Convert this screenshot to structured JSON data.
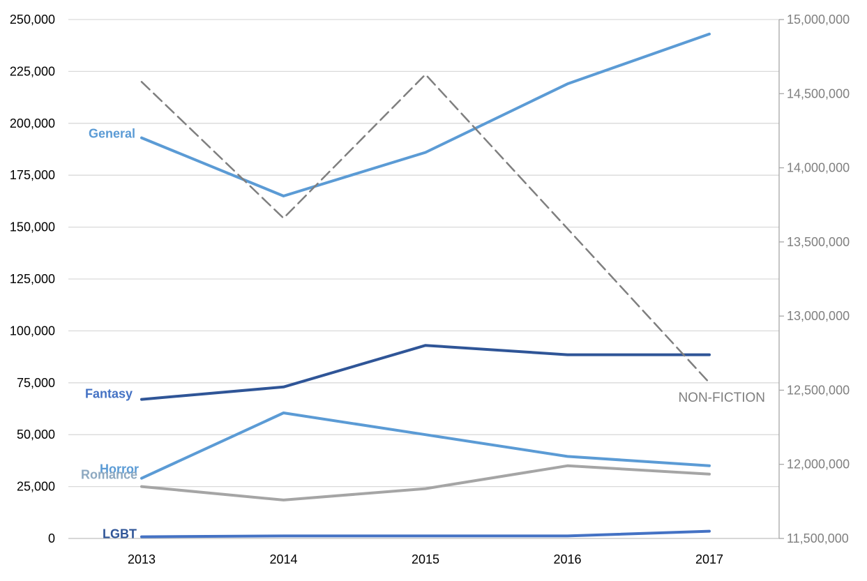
{
  "chart_data": {
    "type": "line",
    "title": "",
    "xlabel": "",
    "ylabel": "",
    "categories": [
      "2013",
      "2014",
      "2015",
      "2016",
      "2017"
    ],
    "left_axis": {
      "ylim": [
        0,
        250000
      ],
      "ticks": [
        "0",
        "25,000",
        "50,000",
        "75,000",
        "100,000",
        "125,000",
        "150,000",
        "175,000",
        "200,000",
        "225,000",
        "250,000"
      ]
    },
    "right_axis": {
      "ylim": [
        11500000,
        15000000
      ],
      "ticks": [
        "11,500,000",
        "12,000,000",
        "12,500,000",
        "13,000,000",
        "13,500,000",
        "14,000,000",
        "14,500,000",
        "15,000,000"
      ]
    },
    "grid": true,
    "series": [
      {
        "name": "General",
        "axis": "left",
        "color": "#5b9bd5",
        "dash": false,
        "values": [
          193000,
          165000,
          186000,
          219000,
          243000
        ]
      },
      {
        "name": "Fantasy",
        "axis": "left",
        "color": "#2f5597",
        "dash": false,
        "values": [
          67000,
          73000,
          93000,
          88500,
          88500
        ]
      },
      {
        "name": "Horror",
        "axis": "left",
        "color": "#5b9bd5",
        "dash": false,
        "values": [
          29000,
          60500,
          50000,
          39500,
          35000
        ]
      },
      {
        "name": "Romance",
        "axis": "left",
        "color": "#a5a5a5",
        "dash": false,
        "values": [
          25000,
          18500,
          24000,
          35000,
          31000
        ]
      },
      {
        "name": "LGBT",
        "axis": "left",
        "color": "#4472c4",
        "dash": false,
        "values": [
          800,
          1200,
          1200,
          1200,
          3500
        ]
      },
      {
        "name": "NON-FICTION",
        "axis": "right",
        "color": "#7f7f7f",
        "dash": true,
        "values": [
          14580000,
          13660000,
          14630000,
          13590000,
          12550000
        ]
      }
    ],
    "label_colors": {
      "General": "#5b9bd5",
      "Fantasy": "#4472c4",
      "Horror": "#5b9bd5",
      "Romance": "#8ea9c1",
      "LGBT": "#2f5597"
    }
  }
}
